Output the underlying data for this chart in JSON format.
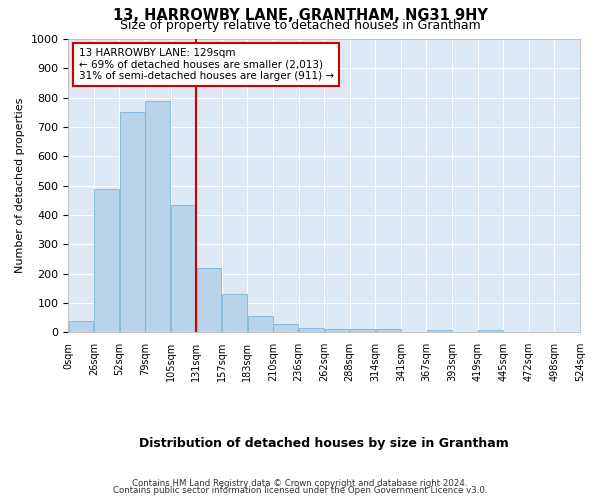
{
  "title": "13, HARROWBY LANE, GRANTHAM, NG31 9HY",
  "subtitle": "Size of property relative to detached houses in Grantham",
  "xlabel": "Distribution of detached houses by size in Grantham",
  "ylabel": "Number of detached properties",
  "bar_color": "#b8d4ea",
  "bar_edge_color": "#6aaed6",
  "background_color": "#dce9f5",
  "grid_color": "#ffffff",
  "bin_labels": [
    "0sqm",
    "26sqm",
    "52sqm",
    "79sqm",
    "105sqm",
    "131sqm",
    "157sqm",
    "183sqm",
    "210sqm",
    "236sqm",
    "262sqm",
    "288sqm",
    "314sqm",
    "341sqm",
    "367sqm",
    "393sqm",
    "419sqm",
    "445sqm",
    "472sqm",
    "498sqm",
    "524sqm"
  ],
  "bar_values": [
    40,
    490,
    750,
    790,
    435,
    220,
    130,
    55,
    28,
    15,
    10,
    10,
    10,
    0,
    8,
    0,
    8,
    0,
    0,
    0
  ],
  "vline_x_index": 5,
  "ylim": [
    0,
    1000
  ],
  "yticks": [
    0,
    100,
    200,
    300,
    400,
    500,
    600,
    700,
    800,
    900,
    1000
  ],
  "annotation_text": "13 HARROWBY LANE: 129sqm\n← 69% of detached houses are smaller (2,013)\n31% of semi-detached houses are larger (911) →",
  "annotation_box_color": "#ffffff",
  "annotation_border_color": "#cc0000",
  "vline_color": "#cc0000",
  "footer_line1": "Contains HM Land Registry data © Crown copyright and database right 2024.",
  "footer_line2": "Contains public sector information licensed under the Open Government Licence v3.0.",
  "n_bins": 20
}
